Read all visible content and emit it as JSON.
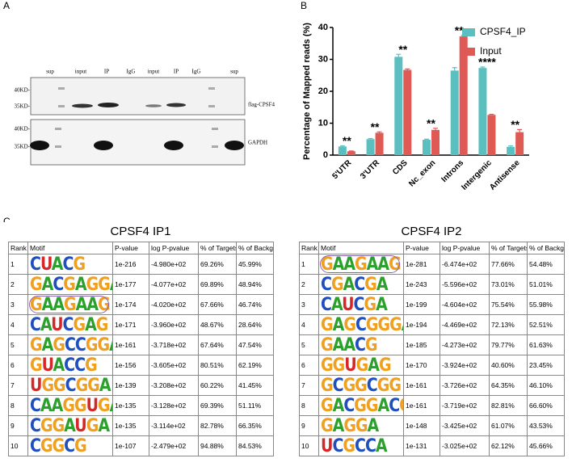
{
  "panel_labels": [
    "A",
    "B",
    "C"
  ],
  "blot": {
    "lanes": [
      "sup",
      "input",
      "IP",
      "IgG",
      "input",
      "IP",
      "IgG",
      "sup"
    ],
    "markers_top": [
      "40KD-",
      "35KD-"
    ],
    "markers_bottom": [
      "40KD-",
      "35KD-"
    ],
    "label_top": "flag-CPSF4",
    "label_bottom": "GAPDH"
  },
  "chart_data": {
    "type": "bar",
    "ylabel": "Percentage of Mapped reads (%)",
    "categories": [
      "5'UTR",
      "3'UTR",
      "CDS",
      "Nc_exon",
      "Introns",
      "Intergenic",
      "Antisense"
    ],
    "series": [
      {
        "name": "CPSF4_IP",
        "color": "#5bbfbf",
        "values": [
          2.7,
          5.0,
          30.8,
          4.8,
          26.5,
          27.3,
          2.6
        ],
        "errors": [
          0.2,
          0.2,
          0.8,
          0.2,
          0.9,
          0.3,
          0.3
        ]
      },
      {
        "name": "Input",
        "color": "#e05a55",
        "values": [
          1.2,
          7.0,
          26.7,
          7.9,
          37.2,
          12.6,
          7.2
        ],
        "errors": [
          0.1,
          0.3,
          0.3,
          0.5,
          0.3,
          0.2,
          0.8
        ]
      }
    ],
    "annotations": [
      "**",
      "**",
      "**",
      "**",
      "**",
      "****",
      "**"
    ],
    "ylim": [
      0,
      40
    ],
    "yticks": [
      0,
      10,
      20,
      30,
      40
    ],
    "legend": "top-right"
  },
  "tables": [
    {
      "title": "CPSF4 IP1",
      "circled": 2,
      "header": [
        "Rank",
        "Motif",
        "P-value",
        "log P-pvalue",
        "% of Targets",
        "% of Background"
      ],
      "rows": [
        [
          "1",
          "CUACG",
          "1e-216",
          "-4.980e+02",
          "69.26%",
          "45.99%"
        ],
        [
          "2",
          "GACGAGGA",
          "1e-177",
          "-4.077e+02",
          "69.89%",
          "48.94%"
        ],
        [
          "3",
          "GAAGAAG",
          "1e-174",
          "-4.020e+02",
          "67.66%",
          "46.74%"
        ],
        [
          "4",
          "CAUCGAG",
          "1e-171",
          "-3.960e+02",
          "48.67%",
          "28.64%"
        ],
        [
          "5",
          "GAGCCGGA",
          "1e-161",
          "-3.718e+02",
          "67.64%",
          "47.54%"
        ],
        [
          "6",
          "GUACCG",
          "1e-156",
          "-3.605e+02",
          "80.51%",
          "62.19%"
        ],
        [
          "7",
          "UGGCGGA",
          "1e-139",
          "-3.208e+02",
          "60.22%",
          "41.45%"
        ],
        [
          "8",
          "CAAGGUGA",
          "1e-135",
          "-3.128e+02",
          "69.39%",
          "51.11%"
        ],
        [
          "9",
          "CGGAUGA",
          "1e-135",
          "-3.114e+02",
          "82.78%",
          "66.35%"
        ],
        [
          "10",
          "CGGCG",
          "1e-107",
          "-2.479e+02",
          "94.88%",
          "84.53%"
        ]
      ]
    },
    {
      "title": "CPSF4 IP2",
      "circled": 0,
      "header": [
        "Rank",
        "Motif",
        "P-value",
        "log P-pvalue",
        "% of Targets",
        "% of Background"
      ],
      "rows": [
        [
          "1",
          "GAAGAAG",
          "1e-281",
          "-6.474e+02",
          "77.66%",
          "54.48%"
        ],
        [
          "2",
          "CGACGA",
          "1e-243",
          "-5.596e+02",
          "73.01%",
          "51.01%"
        ],
        [
          "3",
          "CAUCGA",
          "1e-199",
          "-4.604e+02",
          "75.54%",
          "55.98%"
        ],
        [
          "4",
          "GAGCGGGA",
          "1e-194",
          "-4.469e+02",
          "72.13%",
          "52.51%"
        ],
        [
          "5",
          "GAACG",
          "1e-185",
          "-4.273e+02",
          "79.77%",
          "61.63%"
        ],
        [
          "6",
          "GGUGAG",
          "1e-170",
          "-3.924e+02",
          "40.60%",
          "23.45%"
        ],
        [
          "7",
          "GCGGCGG",
          "1e-161",
          "-3.726e+02",
          "64.35%",
          "46.10%"
        ],
        [
          "8",
          "GACGGACG",
          "1e-161",
          "-3.719e+02",
          "82.81%",
          "66.60%"
        ],
        [
          "9",
          "GAGGA",
          "1e-148",
          "-3.425e+02",
          "61.07%",
          "43.53%"
        ],
        [
          "10",
          "UCGCCA",
          "1e-131",
          "-3.025e+02",
          "62.12%",
          "45.66%"
        ]
      ]
    }
  ]
}
